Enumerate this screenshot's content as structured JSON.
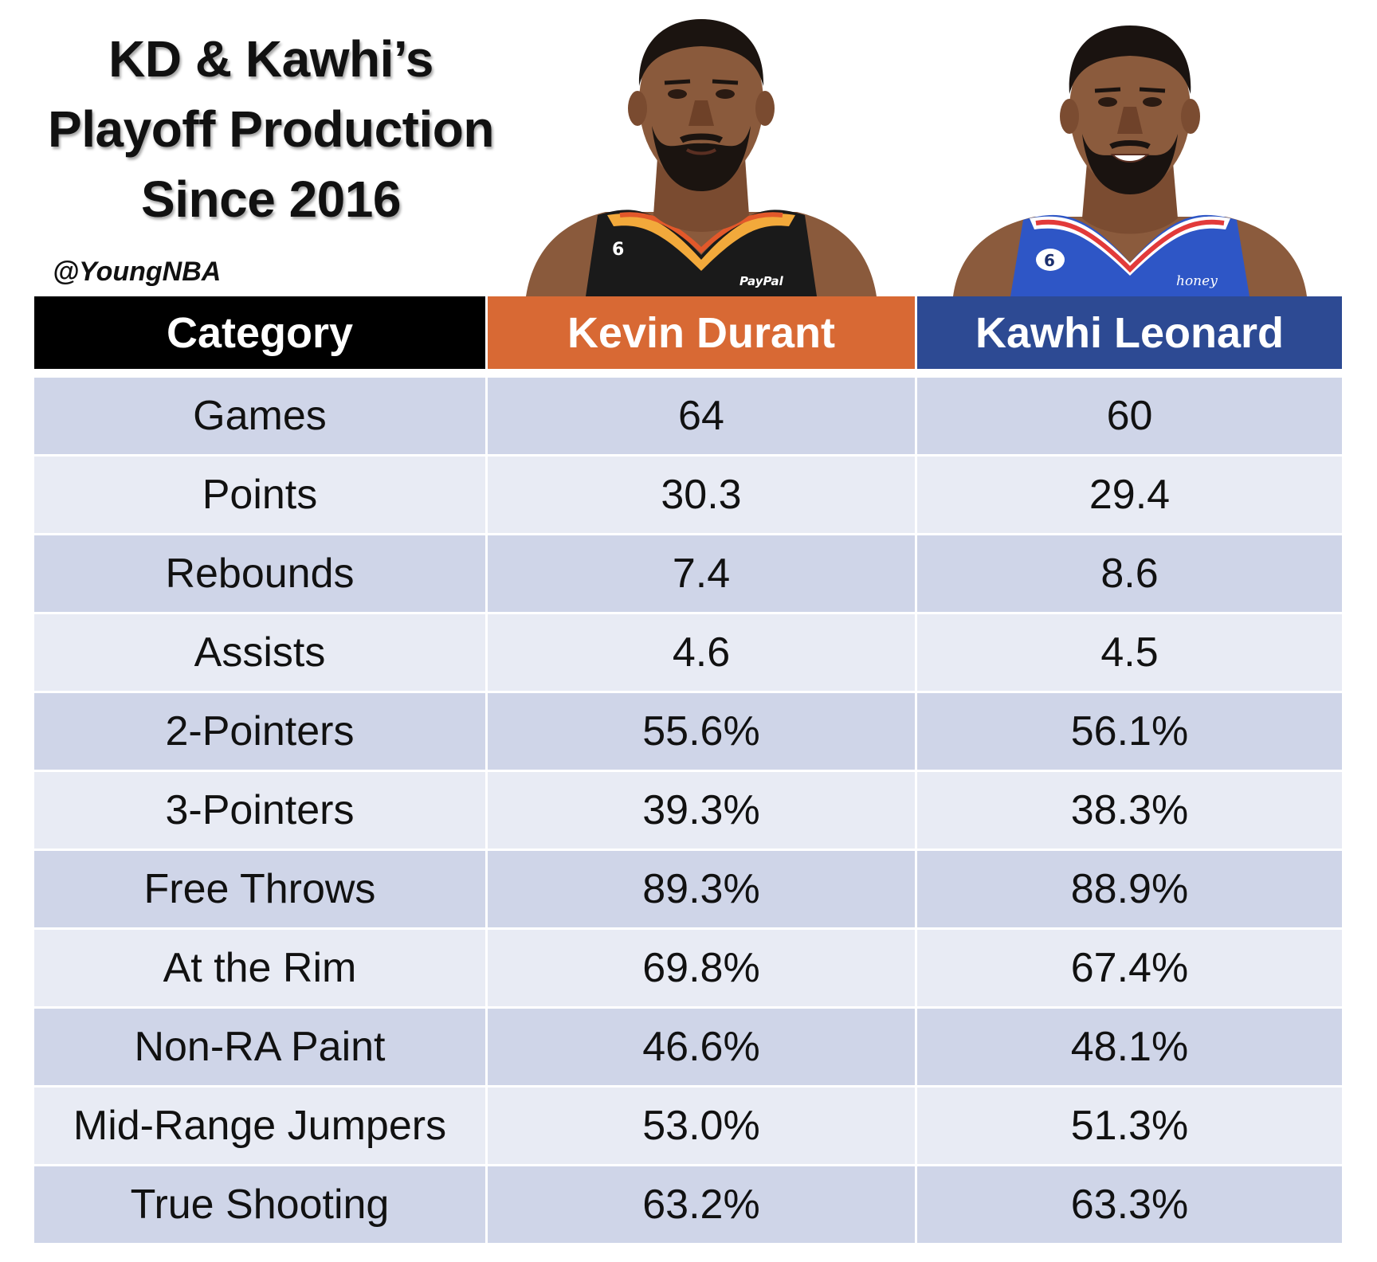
{
  "chart_data": {
    "type": "table",
    "title_lines": [
      "KD & Kawhi’s",
      "Playoff Production",
      "Since 2016"
    ],
    "credit": "@YoungNBA",
    "columns": [
      "Category",
      "Kevin Durant",
      "Kawhi Leonard"
    ],
    "rows": [
      {
        "category": "Games",
        "durant": "64",
        "leonard": "60"
      },
      {
        "category": "Points",
        "durant": "30.3",
        "leonard": "29.4"
      },
      {
        "category": "Rebounds",
        "durant": "7.4",
        "leonard": "8.6"
      },
      {
        "category": "Assists",
        "durant": "4.6",
        "leonard": "4.5"
      },
      {
        "category": "2-Pointers",
        "durant": "55.6%",
        "leonard": "56.1%"
      },
      {
        "category": "3-Pointers",
        "durant": "39.3%",
        "leonard": "38.3%"
      },
      {
        "category": "Free Throws",
        "durant": "89.3%",
        "leonard": "88.9%"
      },
      {
        "category": "At the Rim",
        "durant": "69.8%",
        "leonard": "67.4%"
      },
      {
        "category": "Non-RA Paint",
        "durant": "46.6%",
        "leonard": "48.1%"
      },
      {
        "category": "Mid-Range Jumpers",
        "durant": "53.0%",
        "leonard": "51.3%"
      },
      {
        "category": "True Shooting",
        "durant": "63.2%",
        "leonard": "63.3%"
      }
    ],
    "header_colors": {
      "category": "#000000",
      "durant": "#d86934",
      "leonard": "#2d4a93"
    },
    "row_colors": {
      "dark": "#cfd5e8",
      "light": "#e8ebf4"
    }
  },
  "portraits": {
    "durant": {
      "jersey_number": "6",
      "sponsor": "PayPal",
      "jersey_color": "#1a1a1a",
      "trim_color": "#f2a93b"
    },
    "leonard": {
      "jersey_number": "6",
      "sponsor": "honey",
      "jersey_color": "#2e56c6",
      "trim_color": "#e23a3a"
    }
  }
}
